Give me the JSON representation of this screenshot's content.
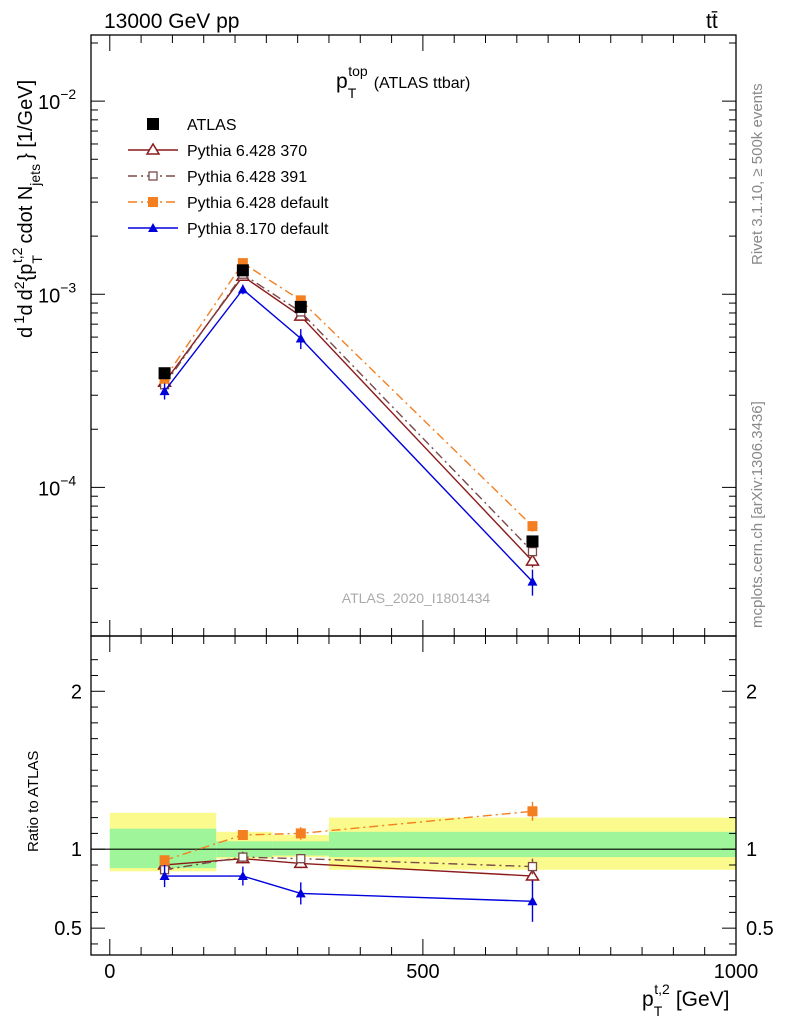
{
  "header": {
    "energy_label": "13000 GeV pp",
    "process_label": "tt̄"
  },
  "side_labels": {
    "rivet": "Rivet 3.1.10, ≥ 500k events",
    "mcplots": "mcplots.cern.ch [arXiv:1306.3436]"
  },
  "chart_data": [
    {
      "type": "line",
      "panel": "main",
      "title_main": "p",
      "title_sub": "T",
      "title_sup": "top",
      "title_rest": "(ATLAS ttbar)",
      "ylabel": "d¹d/σ d²σ/d²{p_T^{t,2} cdot N_jets} [1/GeV]",
      "ylabel_prefix": "d",
      "ylabel_mid": "{p",
      "ylabel_sup": "t,2",
      "ylabel_cdot": "cdot N",
      "ylabel_jets": "jets",
      "ylabel_unit": "} [1/GeV]",
      "yscale": "log",
      "ylim": [
        1.7e-05,
        0.022
      ],
      "xlim": [
        -30,
        1000
      ],
      "y_ticks": [
        {
          "value": 0.01,
          "base": "10",
          "exp": "−2"
        },
        {
          "value": 0.001,
          "base": "10",
          "exp": "−3"
        },
        {
          "value": 0.0001,
          "base": "10",
          "exp": "−4"
        }
      ],
      "watermark": "ATLAS_2020_I1801434",
      "legend_position": "top-left",
      "x": [
        87.5,
        212.5,
        305,
        675
      ],
      "series": [
        {
          "name": "ATLAS",
          "color": "#000000",
          "marker": "filled-square",
          "line": "none",
          "values": [
            0.00039,
            0.00133,
            0.00086,
            5.25e-05
          ],
          "err": [
            0,
            0,
            0,
            0
          ]
        },
        {
          "name": "Pythia 6.428 370",
          "color": "#8b1a1a",
          "marker": "open-triangle",
          "line": "solid",
          "values": [
            0.00035,
            0.00124,
            0.00077,
            4.15e-05
          ],
          "err": [
            2e-05,
            5e-05,
            4e-05,
            3e-06
          ]
        },
        {
          "name": "Pythia 6.428 391",
          "color": "#7a4a4a",
          "marker": "open-square",
          "line": "dashdot",
          "values": [
            0.00034,
            0.00127,
            0.00081,
            4.65e-05
          ],
          "err": [
            2e-05,
            5e-05,
            4e-05,
            3e-06
          ]
        },
        {
          "name": "Pythia 6.428 default",
          "color": "#f47f20",
          "marker": "filled-square",
          "line": "dashdot",
          "values": [
            0.000365,
            0.00145,
            0.00093,
            6.3e-05
          ],
          "err": [
            2e-05,
            5e-05,
            4e-05,
            4e-06
          ]
        },
        {
          "name": "Pythia 8.170 default",
          "color": "#0000dd",
          "marker": "filled-triangle",
          "line": "solid",
          "values": [
            0.000315,
            0.00106,
            0.00059,
            3.25e-05
          ],
          "err": [
            3e-05,
            6e-05,
            7e-05,
            5e-06
          ]
        }
      ]
    },
    {
      "type": "line",
      "panel": "ratio",
      "ylabel": "Ratio to ATLAS",
      "xlabel_main": "p",
      "xlabel_sub": "T",
      "xlabel_sup": "t,2",
      "xlabel_unit": "[GeV]",
      "xlim": [
        -30,
        1000
      ],
      "ylim": [
        0.33,
        2.35
      ],
      "x_ticks": [
        0,
        500,
        1000
      ],
      "y_ticks": [
        0.5,
        1,
        2
      ],
      "reference": 1.0,
      "bands": [
        {
          "x0": 0,
          "x1": 170,
          "yellow": [
            0.86,
            1.23
          ],
          "green": [
            0.88,
            1.13
          ]
        },
        {
          "x0": 170,
          "x1": 260,
          "yellow": [
            0.94,
            1.11
          ],
          "green": [
            0.95,
            1.05
          ]
        },
        {
          "x0": 260,
          "x1": 350,
          "yellow": [
            0.95,
            1.09
          ],
          "green": [
            0.96,
            1.05
          ]
        },
        {
          "x0": 350,
          "x1": 1000,
          "yellow": [
            0.87,
            1.2
          ],
          "green": [
            0.95,
            1.11
          ]
        }
      ],
      "band_colors": {
        "yellow": "#fbfa8c",
        "green": "#9ef59a"
      },
      "x": [
        87.5,
        212.5,
        305,
        675
      ],
      "series": [
        {
          "name": "Pythia 6.428 370",
          "color": "#8b1a1a",
          "marker": "open-triangle",
          "line": "solid",
          "values": [
            0.9,
            0.94,
            0.91,
            0.83
          ],
          "err": [
            0.03,
            0.03,
            0.03,
            0.04
          ]
        },
        {
          "name": "Pythia 6.428 391",
          "color": "#7a4a4a",
          "marker": "open-square",
          "line": "dashdot",
          "values": [
            0.87,
            0.95,
            0.94,
            0.89
          ],
          "err": [
            0.03,
            0.03,
            0.03,
            0.05
          ]
        },
        {
          "name": "Pythia 6.428 default",
          "color": "#f47f20",
          "marker": "filled-square",
          "line": "dashdot",
          "values": [
            0.93,
            1.09,
            1.1,
            1.24
          ],
          "err": [
            0.03,
            0.03,
            0.04,
            0.06
          ]
        },
        {
          "name": "Pythia 8.170 default",
          "color": "#0000dd",
          "marker": "filled-triangle",
          "line": "solid",
          "values": [
            0.83,
            0.83,
            0.72,
            0.67
          ],
          "err": [
            0.07,
            0.06,
            0.07,
            0.13
          ]
        }
      ]
    }
  ]
}
